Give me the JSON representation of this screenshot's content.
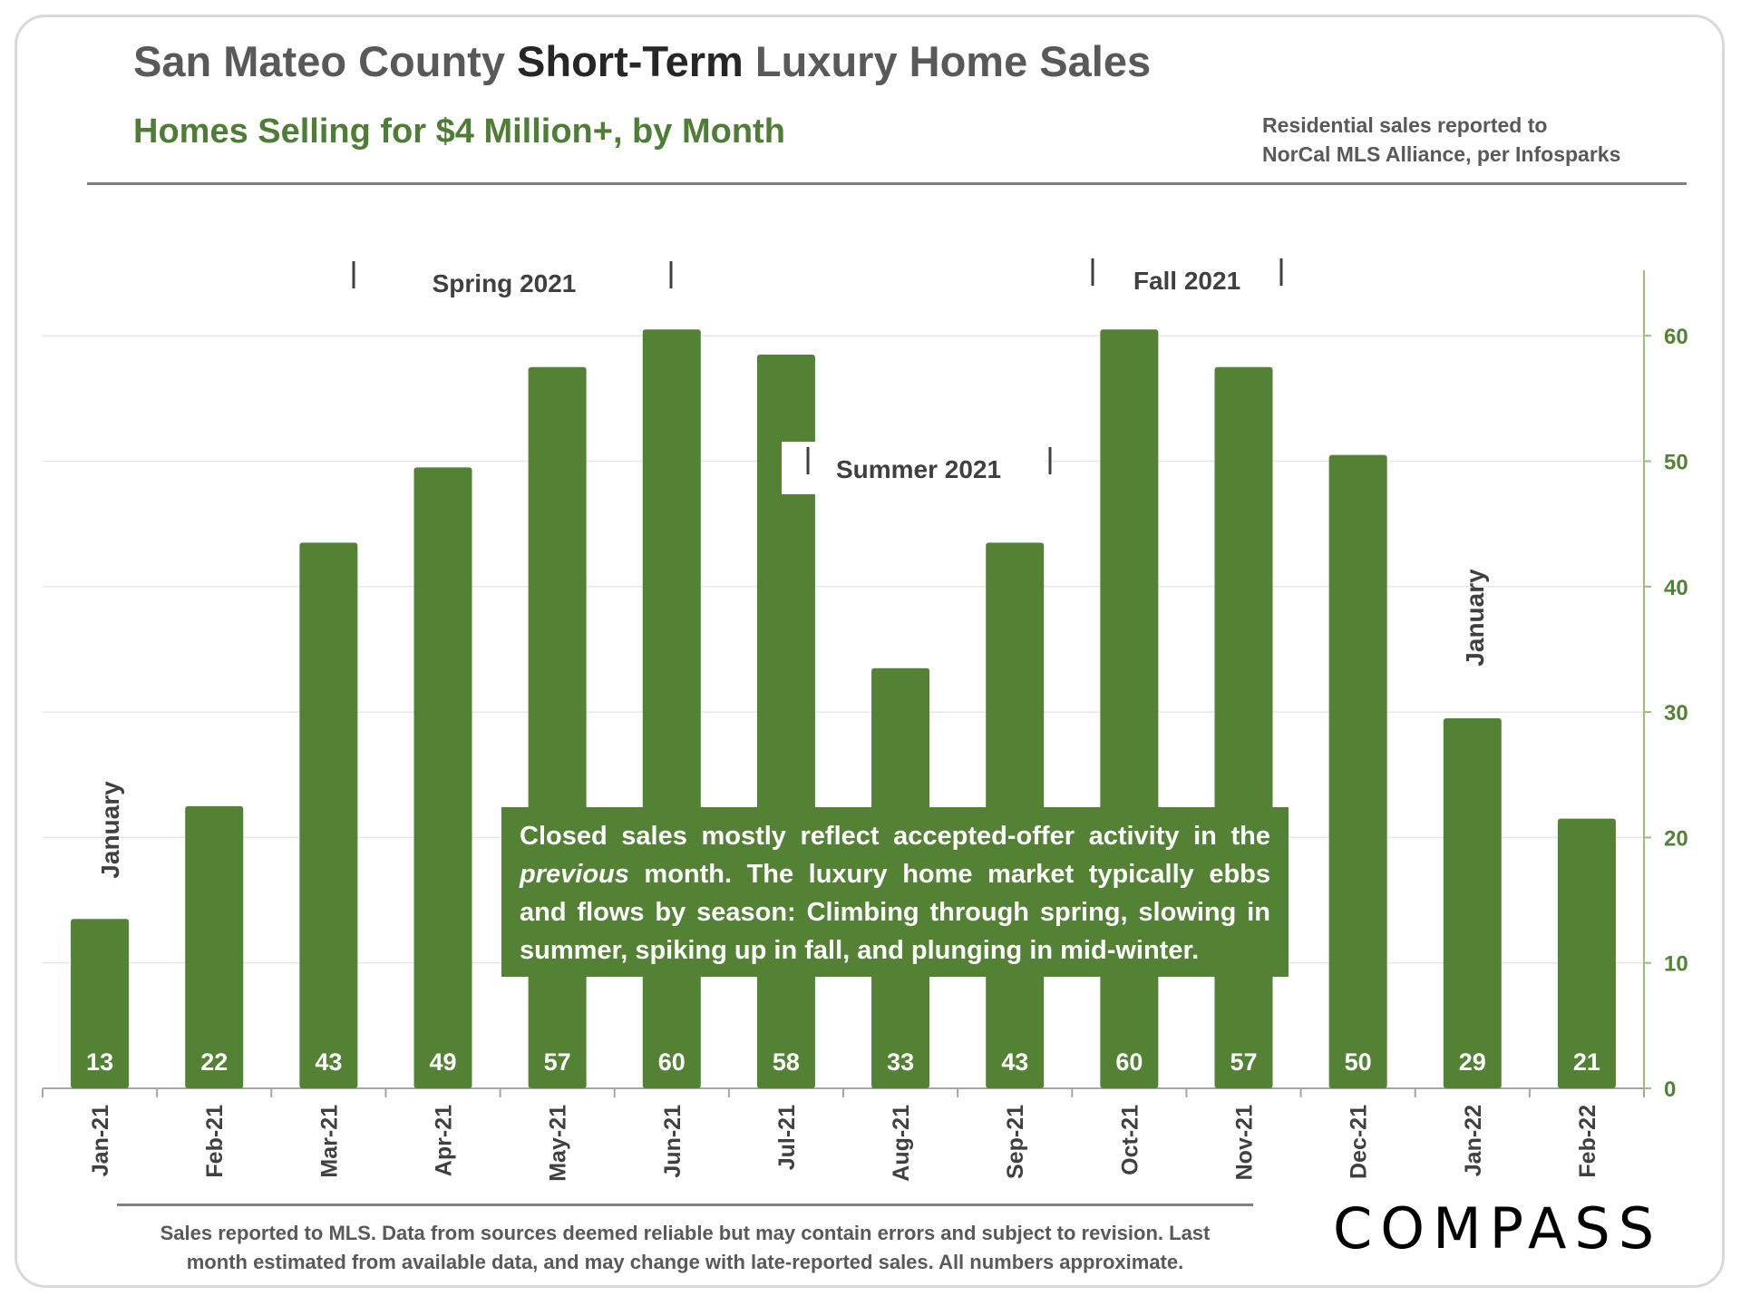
{
  "header": {
    "title_pre": "San Mateo County ",
    "title_strong": "Short-Term",
    "title_post": " Luxury Home Sales",
    "subtitle": "Homes Selling for $4 Million+, by Month",
    "source_line1": "Residential sales reported to",
    "source_line2": "NorCal MLS Alliance, per Infosparks"
  },
  "chart_data": {
    "type": "bar",
    "title": "San Mateo County Short-Term Luxury Home Sales",
    "subtitle": "Homes Selling for $4 Million+, by Month",
    "categories": [
      "Jan-21",
      "Feb-21",
      "Mar-21",
      "Apr-21",
      "May-21",
      "Jun-21",
      "Jul-21",
      "Aug-21",
      "Sep-21",
      "Oct-21",
      "Nov-21",
      "Dec-21",
      "Jan-22",
      "Feb-22"
    ],
    "values": [
      13,
      22,
      43,
      49,
      57,
      60,
      58,
      33,
      43,
      60,
      57,
      50,
      29,
      21
    ],
    "bar_heights": [
      13.5,
      22.5,
      43.5,
      49.5,
      57.5,
      60.5,
      58.5,
      33.5,
      43.5,
      60.5,
      57.5,
      50.5,
      29.5,
      21.5
    ],
    "ylim": [
      0,
      65
    ],
    "yticks": [
      0,
      10,
      20,
      30,
      40,
      50,
      60
    ],
    "y_axis_side": "right",
    "grid": true,
    "xlabel": "",
    "ylabel": "",
    "bar_color": "#548235",
    "season_labels": [
      "Spring 2021",
      "Summer 2021",
      "Fall 2021"
    ],
    "january_labels": [
      "January",
      "January"
    ]
  },
  "callout": {
    "part1": "Closed sales mostly reflect accepted-offer activity in the ",
    "emphasis": "previous",
    "part2": " month. The luxury home market typically ebbs and flows by season: Climbing through spring, slowing in summer, spiking up in fall, and plunging in mid-winter."
  },
  "footer": {
    "line1": "Sales reported to MLS. Data from sources deemed reliable but may contain errors and subject to revision.  Last",
    "line2": "month estimated from available data, and may change with late-reported sales. All numbers approximate.",
    "logo": "COMPASS"
  },
  "colors": {
    "accent": "#548235",
    "title": "#595959",
    "title_strong": "#262626",
    "subtitle": "#4e7d35"
  }
}
